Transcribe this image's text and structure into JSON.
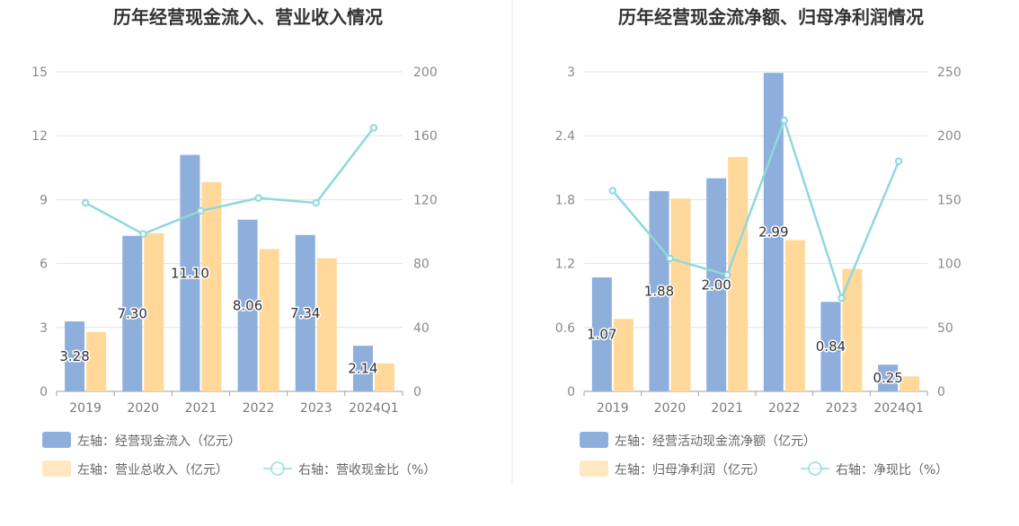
{
  "colors": {
    "bar_primary": "#8eaedb",
    "bar_secondary": "#ffd89a",
    "line": "#8fd8dc",
    "grid": "#dde3ee",
    "axis": "#9aa0aa",
    "divider": "#e6e6e6"
  },
  "chart_data": [
    {
      "type": "bar",
      "title": "历年经营现金流入、营业收入情况",
      "categories": [
        "2019",
        "2020",
        "2021",
        "2022",
        "2023",
        "2024Q1"
      ],
      "y_left": {
        "ticks": [
          "0",
          "3",
          "6",
          "9",
          "12",
          "15"
        ],
        "ylim": [
          0,
          15
        ]
      },
      "y_right": {
        "ticks": [
          "0",
          "40",
          "80",
          "120",
          "160",
          "200"
        ],
        "ylim": [
          0,
          200
        ]
      },
      "grid": true,
      "legend_position": "bottom-left",
      "series": [
        {
          "name": "左轴：经营现金流入（亿元）",
          "type": "bar",
          "axis": "left",
          "values": [
            3.28,
            7.3,
            11.1,
            8.06,
            7.34,
            2.14
          ],
          "labels": [
            "3.28",
            "7.30",
            "11.10",
            "8.06",
            "7.34",
            "2.14"
          ]
        },
        {
          "name": "左轴：营业总收入（亿元）",
          "type": "bar",
          "axis": "left",
          "values": [
            2.78,
            7.42,
            9.82,
            6.68,
            6.25,
            1.31
          ]
        },
        {
          "name": "右轴：营收现金比（%）",
          "type": "line",
          "axis": "right",
          "values": [
            118,
            98.5,
            113,
            121,
            118,
            165
          ]
        }
      ]
    },
    {
      "type": "bar",
      "title": "历年经营现金流净额、归母净利润情况",
      "categories": [
        "2019",
        "2020",
        "2021",
        "2022",
        "2023",
        "2024Q1"
      ],
      "y_left": {
        "ticks": [
          "0",
          "0.6",
          "1.2",
          "1.8",
          "2.4",
          "3"
        ],
        "ylim": [
          0,
          3
        ]
      },
      "y_right": {
        "ticks": [
          "0",
          "50",
          "100",
          "150",
          "200",
          "250"
        ],
        "ylim": [
          0,
          250
        ]
      },
      "grid": true,
      "legend_position": "bottom-left",
      "series": [
        {
          "name": "左轴：经营活动现金流净额（亿元）",
          "type": "bar",
          "axis": "left",
          "values": [
            1.07,
            1.88,
            2.0,
            2.99,
            0.84,
            0.25
          ],
          "labels": [
            "1.07",
            "1.88",
            "2.00",
            "2.99",
            "0.84",
            "0.25"
          ]
        },
        {
          "name": "左轴：归母净利润（亿元）",
          "type": "bar",
          "axis": "left",
          "values": [
            0.68,
            1.81,
            2.2,
            1.42,
            1.15,
            0.14
          ]
        },
        {
          "name": "右轴：净现比（%）",
          "type": "line",
          "axis": "right",
          "values": [
            157,
            104,
            91,
            212,
            73,
            180
          ]
        }
      ]
    }
  ]
}
